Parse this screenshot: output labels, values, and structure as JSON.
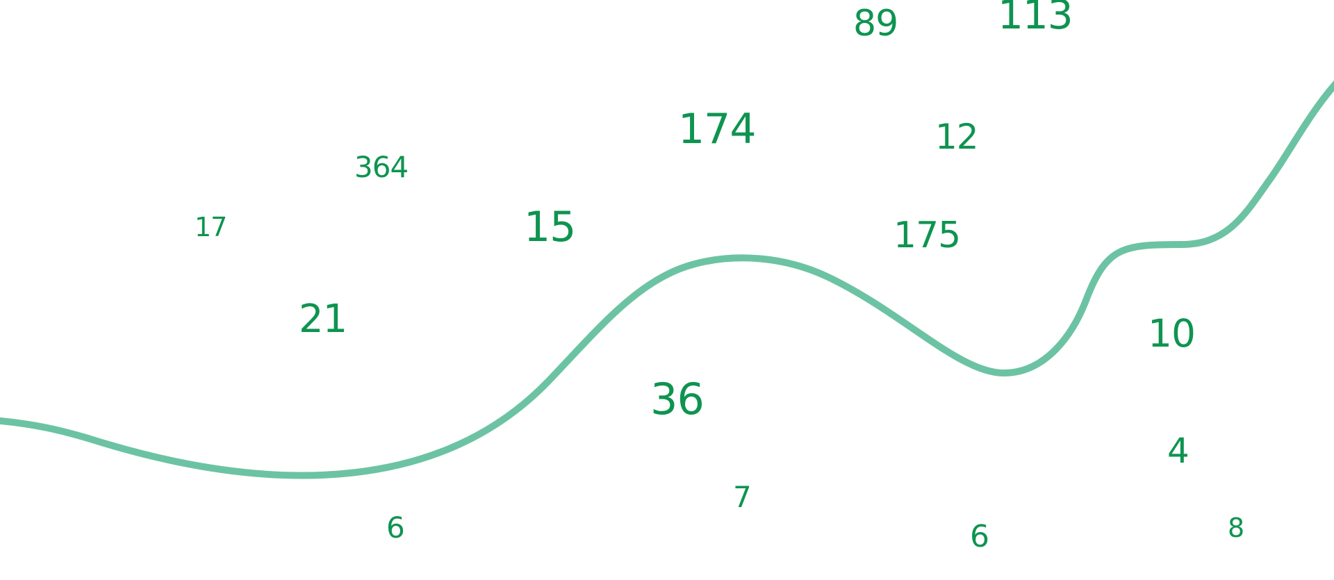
{
  "colors": {
    "number": "#0e9450",
    "curve": "#6cc3a4",
    "background": "#ffffff"
  },
  "numbers": [
    "89",
    "113",
    "174",
    "364",
    "12",
    "17",
    "15",
    "175",
    "21",
    "10",
    "36",
    "4",
    "7",
    "6",
    "6",
    "8"
  ]
}
